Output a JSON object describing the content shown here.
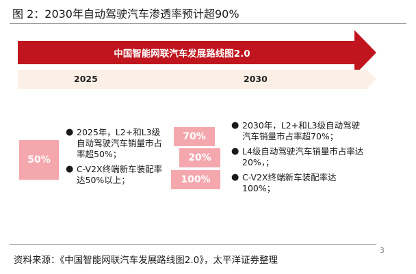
{
  "header": {
    "title": "图 2：2030年自动驾驶汽车渗透率预计超90%"
  },
  "banner": {
    "label": "中国智能网联汽车发展路线图2.0"
  },
  "timeline": {
    "years": [
      "2025",
      "2030"
    ]
  },
  "col2025": {
    "box_value": "50%",
    "bullets": [
      "2025年，L2+和L3级自动驾驶汽车销量市占率超50%；",
      "C-V2X终端新车装配率达50%以上；"
    ]
  },
  "col2030": {
    "box_values": [
      "70%",
      "20%",
      "100%"
    ],
    "bullets": [
      "2030年，L2+和L3级自动驾驶汽车销量市占率超70%；",
      "L4级自动驾驶汽车销量市占率达20%，；",
      "C-V2X终端新车装配率达100%；"
    ]
  },
  "footer": {
    "source": "资料来源：《中国智能网联汽车发展路线图2.0》，太平洋证券整理",
    "page": "3"
  },
  "colors": {
    "banner_red": "#c0151e",
    "timeline_peach": "#fcefe6",
    "box_pink": "#f4a8ae"
  }
}
